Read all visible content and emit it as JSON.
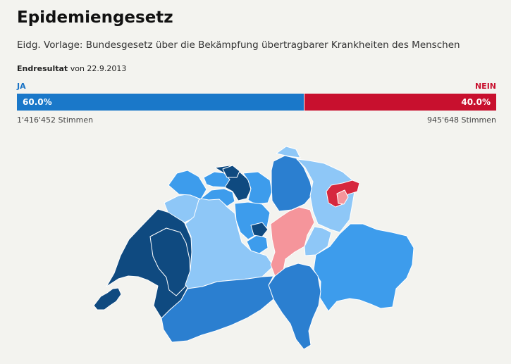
{
  "header": {
    "title": "Epidemiengesetz",
    "subtitle": "Eidg. Vorlage: Bundesgesetz über die Bekämpfung übertragbarer Krankheiten des Menschen",
    "result_strong": "Endresultat",
    "result_date": " von 22.9.2013"
  },
  "result": {
    "yes_label": "JA",
    "no_label": "NEIN",
    "yes_percent": 60.0,
    "no_percent": 40.0,
    "yes_percent_text": "60.0%",
    "no_percent_text": "40.0%",
    "yes_votes": "1'416'452 Stimmen",
    "no_votes": "945'648 Stimmen",
    "yes_color": "#1a78c9",
    "no_color": "#c8102e"
  },
  "map": {
    "colors": {
      "yes_strong": "#0f4a80",
      "yes_medium": "#2b7fd0",
      "yes_light": "#3d9cec",
      "yes_pale": "#8ec7f7",
      "no_light": "#f5959b",
      "no_strong": "#d6283e"
    }
  }
}
